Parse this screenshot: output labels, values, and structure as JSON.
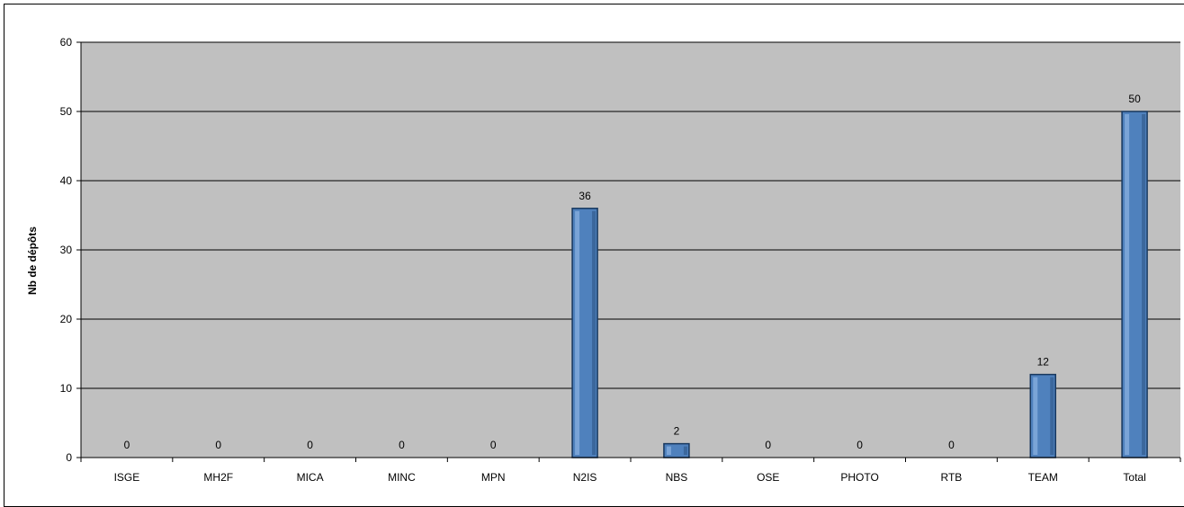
{
  "chart_data": {
    "type": "bar",
    "categories": [
      "ISGE",
      "MH2F",
      "MICA",
      "MINC",
      "MPN",
      "N2IS",
      "NBS",
      "OSE",
      "PHOTO",
      "RTB",
      "TEAM",
      "Total"
    ],
    "values": [
      0,
      0,
      0,
      0,
      0,
      36,
      2,
      0,
      0,
      0,
      12,
      50
    ],
    "title": "",
    "xlabel": "",
    "ylabel": "Nb de dépôts",
    "ylim": [
      0,
      60
    ],
    "yticks": [
      0,
      10,
      20,
      30,
      40,
      50,
      60
    ],
    "grid": true,
    "legend": "none",
    "colors": {
      "plot_background": "#c0c0c0",
      "bar_fill": "#4f81bd",
      "bar_highlight": "#8db3e2",
      "bar_edge": "#17375e",
      "gridline": "#000000"
    }
  }
}
